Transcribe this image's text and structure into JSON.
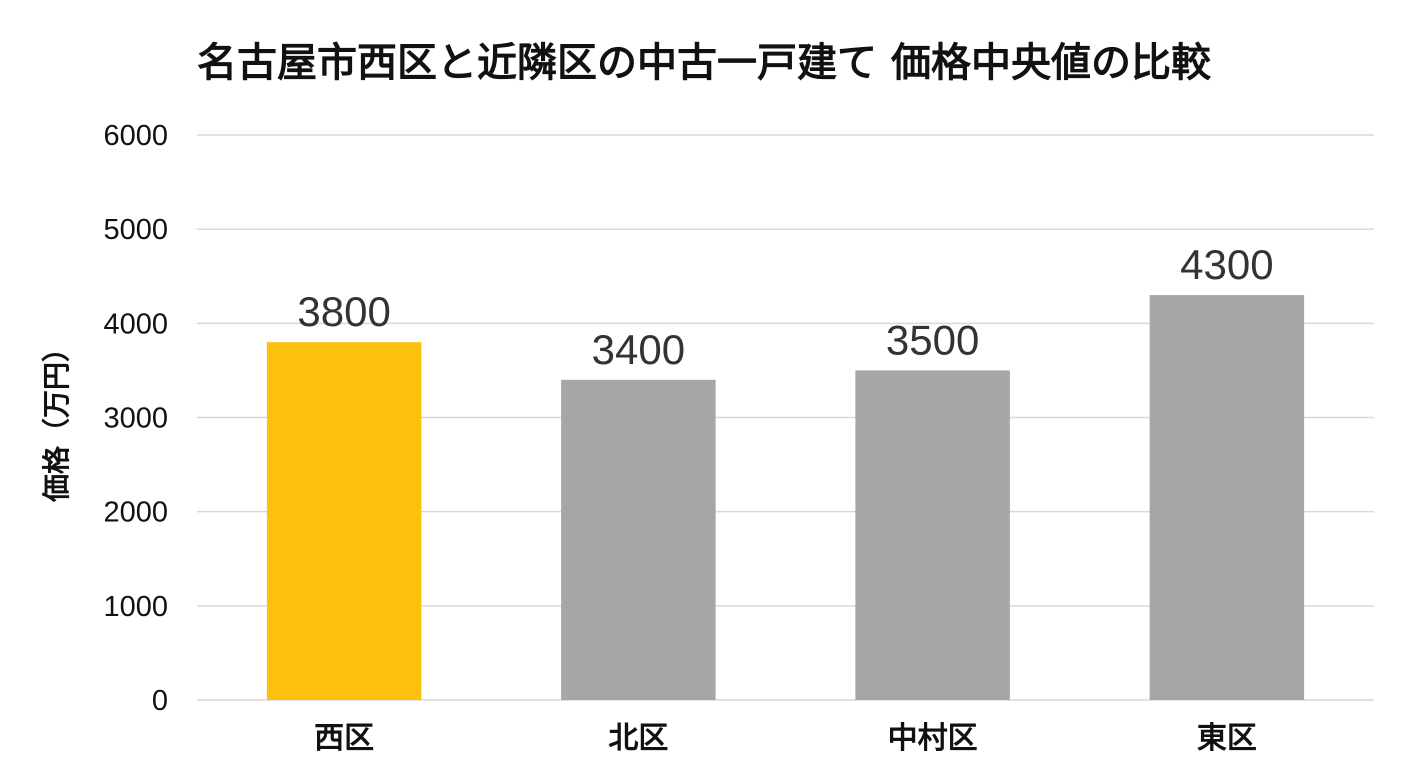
{
  "chart_data": {
    "type": "bar",
    "title": "名古屋市西区と近隣区の中古一戸建て 価格中央値の比較",
    "xlabel": "",
    "ylabel": "価格（万円）",
    "categories": [
      "西区",
      "北区",
      "中村区",
      "東区"
    ],
    "values": [
      3800,
      3400,
      3500,
      4300
    ],
    "data_labels": [
      "3800",
      "3400",
      "3500",
      "4300"
    ],
    "ylim": [
      0,
      6000
    ],
    "yticks": [
      0,
      1000,
      2000,
      3000,
      4000,
      5000,
      6000
    ],
    "ytick_labels": [
      "0",
      "1000",
      "2000",
      "3000",
      "4000",
      "5000",
      "6000"
    ],
    "grid": true,
    "legend": "none",
    "colors": {
      "highlight": "#FCC10F",
      "default": "#A6A6A6",
      "grid": "#D9D9D9"
    },
    "highlight_category": "西区"
  }
}
